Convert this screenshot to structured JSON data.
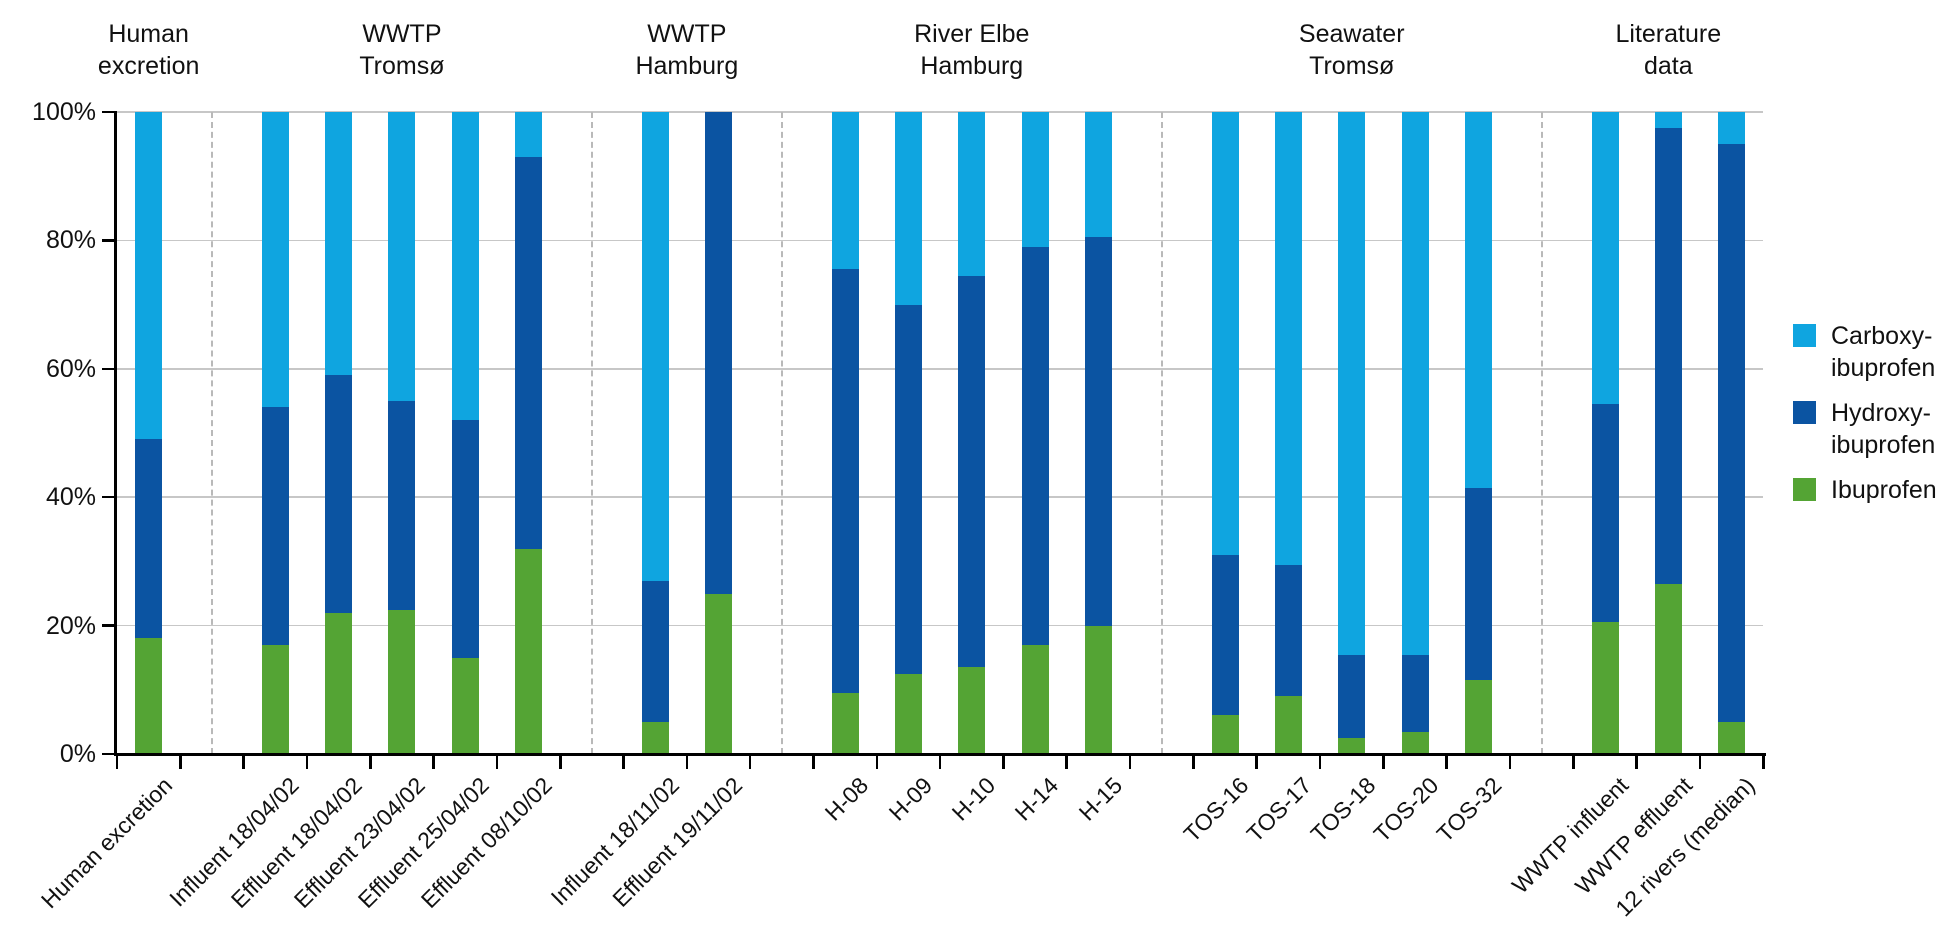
{
  "chart_data": {
    "type": "bar",
    "stacked": true,
    "unit": "%",
    "title": "",
    "xlabel": "",
    "ylabel": "",
    "ylim": [
      0,
      100
    ],
    "y_tick_values": [
      0,
      20,
      40,
      60,
      80,
      100
    ],
    "y_tick_labels": [
      "0%",
      "20%",
      "40%",
      "60%",
      "80%",
      "100%"
    ],
    "grid": "horizontal solid gridlines; dashed vertical separators between groups",
    "legend_position": "right",
    "series": [
      {
        "key": "carboxy",
        "name": "Carboxy-ibuprofen",
        "label_lines": [
          "Carboxy-",
          "ibuprofen"
        ],
        "color": "#0FA5E0"
      },
      {
        "key": "hydroxy",
        "name": "Hydroxy-ibuprofen",
        "label_lines": [
          "Hydroxy-",
          "ibuprofen"
        ],
        "color": "#0B54A2"
      },
      {
        "key": "ibuprofen",
        "name": "Ibuprofen",
        "label_lines": [
          "Ibuprofen"
        ],
        "color": "#54A434"
      }
    ],
    "stack_order_bottom_to_top": [
      "ibuprofen",
      "hydroxy",
      "carboxy"
    ],
    "groups": [
      {
        "title": "Human excretion",
        "title_lines": [
          "Human",
          "excretion"
        ],
        "bars": [
          {
            "label": "Human excretion",
            "values": {
              "ibuprofen": 18,
              "hydroxy": 31,
              "carboxy": 51
            }
          }
        ]
      },
      {
        "title": "WWTP Tromsø",
        "title_lines": [
          "WWTP",
          "Tromsø"
        ],
        "bars": [
          {
            "label": "Influent 18/04/02",
            "values": {
              "ibuprofen": 17,
              "hydroxy": 37,
              "carboxy": 46
            }
          },
          {
            "label": "Effluent 18/04/02",
            "values": {
              "ibuprofen": 22,
              "hydroxy": 37,
              "carboxy": 41
            }
          },
          {
            "label": "Effluent 23/04/02",
            "values": {
              "ibuprofen": 22.5,
              "hydroxy": 32.5,
              "carboxy": 45
            }
          },
          {
            "label": "Effluent 25/04/02",
            "values": {
              "ibuprofen": 15,
              "hydroxy": 37,
              "carboxy": 48
            }
          },
          {
            "label": "Effluent 08/10/02",
            "values": {
              "ibuprofen": 32,
              "hydroxy": 61,
              "carboxy": 7
            }
          }
        ]
      },
      {
        "title": "WWTP Hamburg",
        "title_lines": [
          "WWTP",
          "Hamburg"
        ],
        "bars": [
          {
            "label": "Influent 18/11/02",
            "values": {
              "ibuprofen": 5,
              "hydroxy": 22,
              "carboxy": 73
            }
          },
          {
            "label": "Effluent 19/11/02",
            "values": {
              "ibuprofen": 25,
              "hydroxy": 75,
              "carboxy": 0
            }
          }
        ]
      },
      {
        "title": "River Elbe Hamburg",
        "title_lines": [
          "River Elbe",
          "Hamburg"
        ],
        "bars": [
          {
            "label": "H-08",
            "values": {
              "ibuprofen": 9.5,
              "hydroxy": 66,
              "carboxy": 24.5
            }
          },
          {
            "label": "H-09",
            "values": {
              "ibuprofen": 12.5,
              "hydroxy": 57.5,
              "carboxy": 30
            }
          },
          {
            "label": "H-10",
            "values": {
              "ibuprofen": 13.5,
              "hydroxy": 61,
              "carboxy": 25.5
            }
          },
          {
            "label": "H-14",
            "values": {
              "ibuprofen": 17,
              "hydroxy": 62,
              "carboxy": 21
            }
          },
          {
            "label": "H-15",
            "values": {
              "ibuprofen": 20,
              "hydroxy": 60.5,
              "carboxy": 19.5
            }
          }
        ]
      },
      {
        "title": "Seawater Tromsø",
        "title_lines": [
          "Seawater",
          "Tromsø"
        ],
        "bars": [
          {
            "label": "TOS-16",
            "values": {
              "ibuprofen": 6,
              "hydroxy": 25,
              "carboxy": 69
            }
          },
          {
            "label": "TOS-17",
            "values": {
              "ibuprofen": 9,
              "hydroxy": 20.5,
              "carboxy": 70.5
            }
          },
          {
            "label": "TOS-18",
            "values": {
              "ibuprofen": 2.5,
              "hydroxy": 13,
              "carboxy": 84.5
            }
          },
          {
            "label": "TOS-20",
            "values": {
              "ibuprofen": 3.5,
              "hydroxy": 12,
              "carboxy": 84.5
            }
          },
          {
            "label": "TOS-32",
            "values": {
              "ibuprofen": 11.5,
              "hydroxy": 30,
              "carboxy": 58.5
            }
          }
        ]
      },
      {
        "title": "Literature data",
        "title_lines": [
          "Literature",
          "data"
        ],
        "bars": [
          {
            "label": "WWTP influent",
            "values": {
              "ibuprofen": 20.5,
              "hydroxy": 34,
              "carboxy": 45.5
            }
          },
          {
            "label": "WWTP effluent",
            "values": {
              "ibuprofen": 26.5,
              "hydroxy": 71,
              "carboxy": 2.5
            }
          },
          {
            "label": "12 rivers (median)",
            "values": {
              "ibuprofen": 5,
              "hydroxy": 90,
              "carboxy": 5
            }
          }
        ]
      }
    ],
    "colors": {
      "carboxy": "#0FA5E0",
      "hydroxy": "#0B54A2",
      "ibuprofen": "#54A434",
      "gridline": "#c7c7c7",
      "separator": "#b9b9b9",
      "axis": "#000000"
    }
  }
}
